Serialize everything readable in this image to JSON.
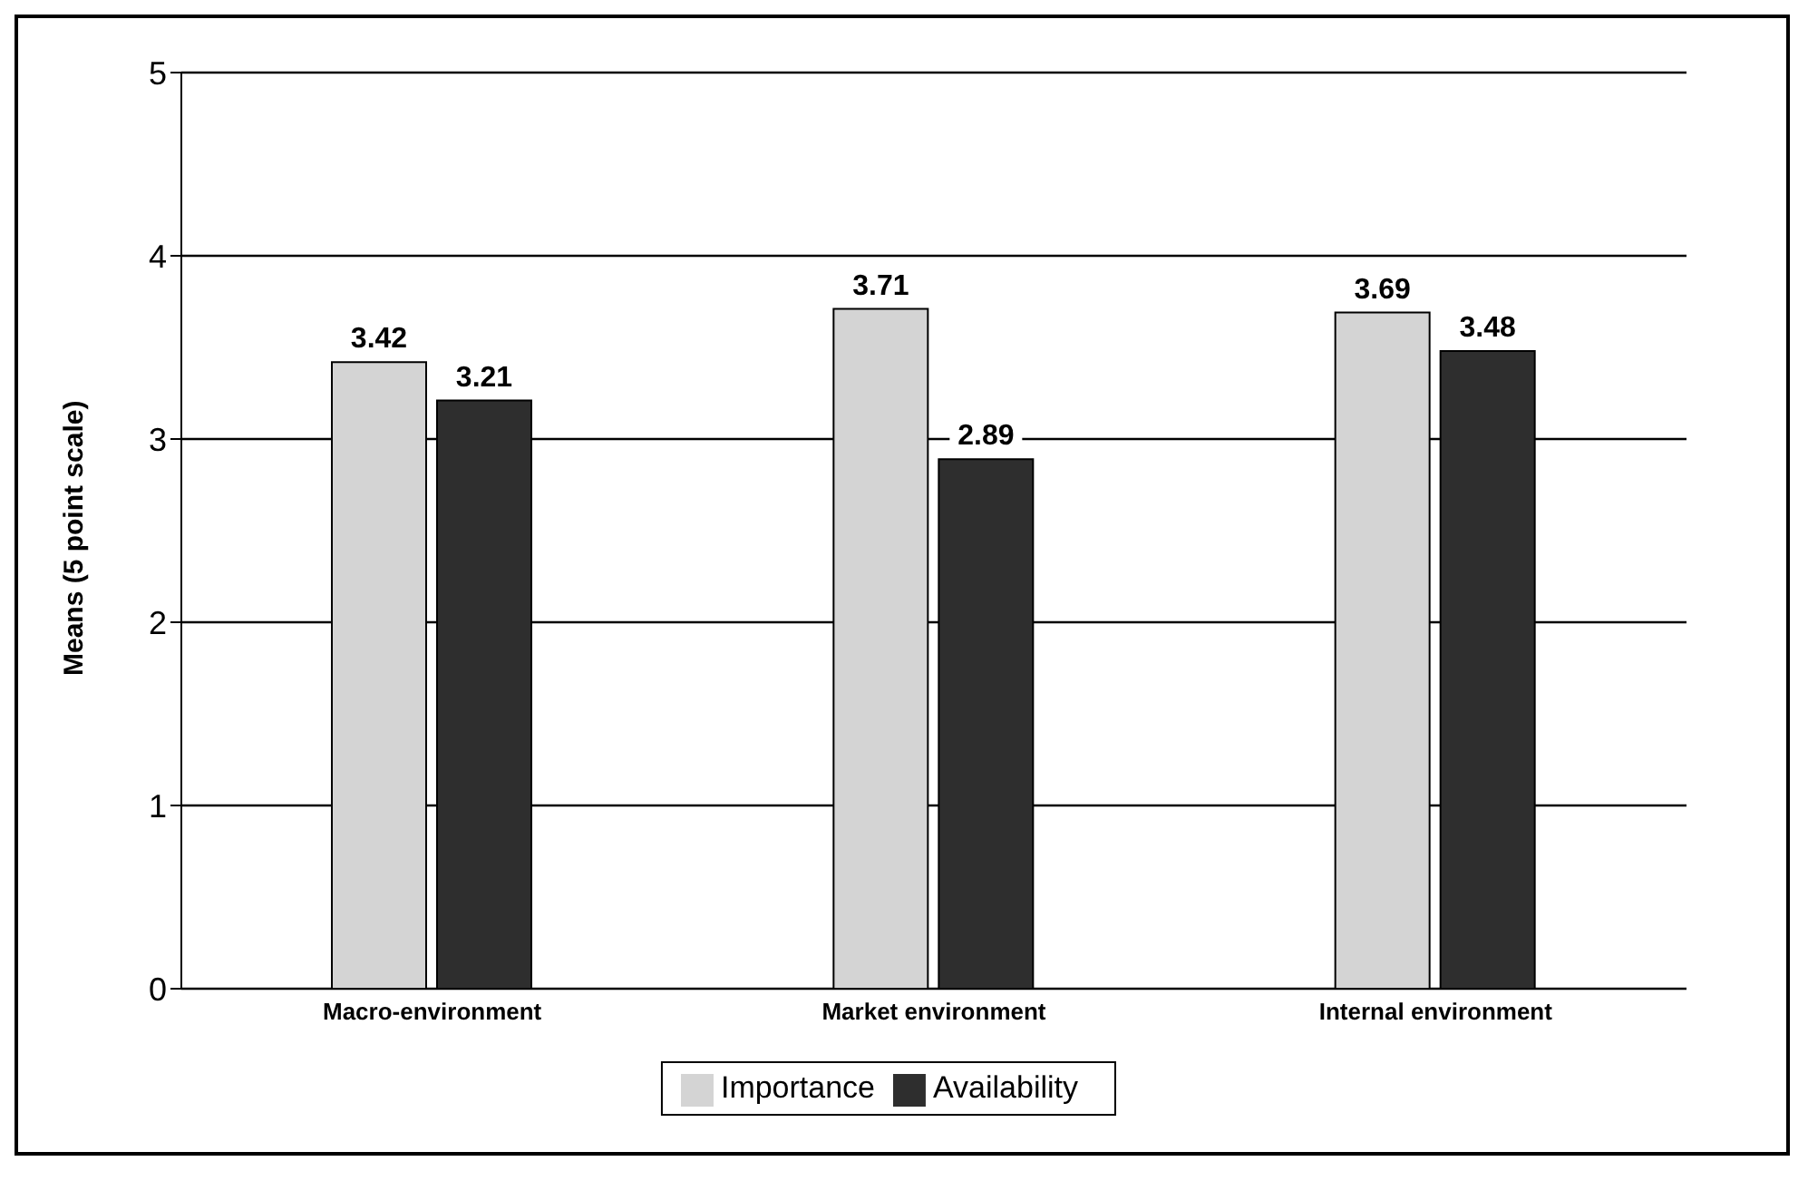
{
  "chart_data": {
    "type": "bar",
    "ylabel": "Means (5 point scale)",
    "categories": [
      "Macro-environment",
      "Market environment",
      "Internal environment"
    ],
    "series": [
      {
        "name": "Importance",
        "color": "#d4d4d4",
        "values": [
          3.42,
          3.71,
          3.69
        ]
      },
      {
        "name": "Availability",
        "color": "#2e2e2e",
        "values": [
          3.21,
          2.89,
          3.48
        ]
      }
    ],
    "ylim": [
      0,
      5
    ],
    "yticks": [
      0,
      1,
      2,
      3,
      4,
      5
    ],
    "grid": "y",
    "legend": "bottom",
    "data_labels": true
  }
}
